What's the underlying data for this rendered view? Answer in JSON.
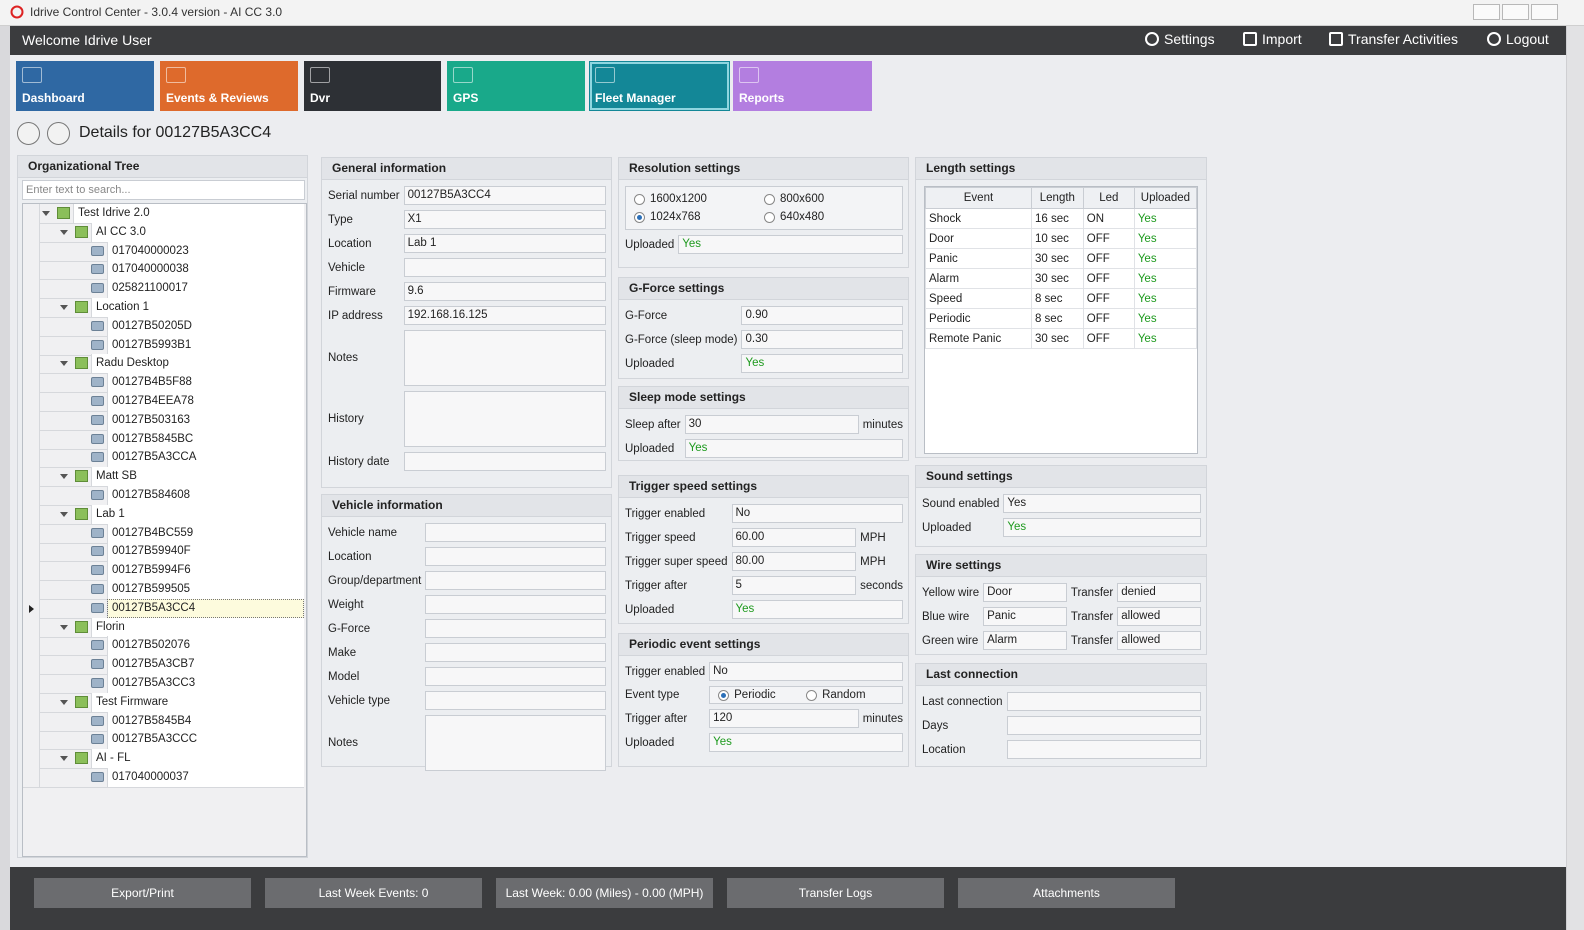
{
  "window": {
    "title": "Idrive Control Center - 3.0.4 version - AI CC 3.0"
  },
  "header": {
    "welcome": "Welcome Idrive User",
    "menu": [
      "Settings",
      "Import",
      "Transfer Activities",
      "Logout"
    ]
  },
  "tabs": [
    {
      "label": "Dashboard",
      "color": "#2f68a3"
    },
    {
      "label": "Events & Reviews",
      "color": "#de6a2c"
    },
    {
      "label": "Dvr",
      "color": "#2d3035"
    },
    {
      "label": "GPS",
      "color": "#19a98a"
    },
    {
      "label": "Fleet Manager",
      "color": "#138797"
    },
    {
      "label": "Reports",
      "color": "#b37ee0"
    }
  ],
  "details": {
    "title": "Details for 00127B5A3CC4"
  },
  "tree": {
    "title": "Organizational Tree",
    "search_placeholder": "Enter text to search...",
    "nodes": [
      {
        "label": "Test Idrive 2.0",
        "children": [
          {
            "label": "AI CC 3.0",
            "children": [
              {
                "label": "017040000023"
              },
              {
                "label": "017040000038"
              },
              {
                "label": "025821100017"
              }
            ]
          },
          {
            "label": "Location 1",
            "children": [
              {
                "label": "00127B50205D"
              },
              {
                "label": "00127B5993B1"
              }
            ]
          },
          {
            "label": "Radu Desktop",
            "children": [
              {
                "label": "00127B4B5F88"
              },
              {
                "label": "00127B4EEA78"
              },
              {
                "label": "00127B503163"
              },
              {
                "label": "00127B5845BC"
              },
              {
                "label": "00127B5A3CCA"
              }
            ]
          },
          {
            "label": "Matt SB",
            "children": [
              {
                "label": "00127B584608"
              }
            ]
          },
          {
            "label": "Lab 1",
            "children": [
              {
                "label": "00127B4BC559"
              },
              {
                "label": "00127B59940F"
              },
              {
                "label": "00127B5994F6"
              },
              {
                "label": "00127B599505"
              },
              {
                "label": "00127B5A3CC4"
              }
            ]
          },
          {
            "label": "Florin",
            "children": [
              {
                "label": "00127B502076"
              },
              {
                "label": "00127B5A3CB7"
              },
              {
                "label": "00127B5A3CC3"
              }
            ]
          },
          {
            "label": "Test Firmware",
            "children": [
              {
                "label": "00127B5845B4"
              },
              {
                "label": "00127B5A3CCC"
              }
            ]
          },
          {
            "label": "AI - FL",
            "children": [
              {
                "label": "017040000037"
              }
            ]
          }
        ]
      }
    ]
  },
  "columns": [
    [
      {
        "title": "General information",
        "rows": [
          {
            "label": "Serial number",
            "value": "00127B5A3CC4"
          },
          {
            "label": "Type",
            "value": "X1"
          },
          {
            "label": "Location",
            "value": "Lab 1"
          },
          {
            "label": "Vehicle"
          },
          {
            "label": "Firmware",
            "value": "9.6"
          },
          {
            "label": "IP address",
            "value": "192.168.16.125"
          },
          {
            "label": "Notes",
            "multiline": true
          },
          {
            "label": "History",
            "multiline": true
          },
          {
            "label": "History date"
          }
        ]
      },
      {
        "title": "Vehicle information",
        "rows": [
          {
            "label": "Vehicle name"
          },
          {
            "label": "Location"
          },
          {
            "label": "Group/department"
          },
          {
            "label": "Weight"
          },
          {
            "label": "G-Force"
          },
          {
            "label": "Make"
          },
          {
            "label": "Model"
          },
          {
            "label": "Vehicle type"
          },
          {
            "label": "Notes",
            "multiline": true
          }
        ]
      }
    ],
    [
      {
        "title": "Resolution settings",
        "rows": [
          {
            "options": [
              "1600x1200",
              "800x600",
              "1024x768",
              "640x480"
            ],
            "selected": 2
          },
          {
            "label": "Uploaded",
            "value": "Yes",
            "value_color": "#1e9a1e"
          }
        ]
      },
      {
        "title": "G-Force settings",
        "rows": [
          {
            "label": "G-Force",
            "value": "0.90"
          },
          {
            "label": "G-Force (sleep mode)",
            "value": "0.30"
          },
          {
            "label": "Uploaded",
            "value": "Yes",
            "value_color": "#1e9a1e"
          }
        ]
      },
      {
        "title": "Sleep mode settings",
        "rows": [
          {
            "label": "Sleep after",
            "value": "30",
            "unit": "minutes"
          },
          {
            "label": "Uploaded",
            "value": "Yes",
            "value_color": "#1e9a1e"
          }
        ]
      },
      {
        "title": "Trigger speed settings",
        "rows": [
          {
            "label": "Trigger enabled",
            "value": "No"
          },
          {
            "label": "Trigger speed",
            "value": "60.00",
            "unit": "MPH"
          },
          {
            "label": "Trigger super speed",
            "value": "80.00",
            "unit": "MPH"
          },
          {
            "label": "Trigger after",
            "value": "5",
            "unit": "seconds"
          },
          {
            "label": "Uploaded",
            "value": "Yes",
            "value_color": "#1e9a1e"
          }
        ]
      },
      {
        "title": "Periodic event settings",
        "rows": [
          {
            "label": "Trigger enabled",
            "value": "No"
          },
          {
            "label": "Event type",
            "options": [
              "Periodic",
              "Random"
            ],
            "selected": 0
          },
          {
            "label": "Trigger after",
            "value": "120",
            "unit": "minutes"
          },
          {
            "label": "Uploaded",
            "value": "Yes",
            "value_color": "#1e9a1e"
          }
        ]
      }
    ],
    [
      {
        "title": "Length settings",
        "table": {
          "headers": [
            "Event",
            "Length",
            "Led",
            "Uploaded"
          ],
          "rows": [
            [
              "Shock",
              "16 sec",
              "ON",
              "Yes"
            ],
            [
              "Door",
              "10 sec",
              "OFF",
              "Yes"
            ],
            [
              "Panic",
              "30 sec",
              "OFF",
              "Yes"
            ],
            [
              "Alarm",
              "30 sec",
              "OFF",
              "Yes"
            ],
            [
              "Speed",
              "8 sec",
              "OFF",
              "Yes"
            ],
            [
              "Periodic",
              "8 sec",
              "OFF",
              "Yes"
            ],
            [
              "Remote Panic",
              "30 sec",
              "OFF",
              "Yes"
            ]
          ],
          "color_column": 3,
          "color": "#1e9a1e"
        }
      },
      {
        "title": "Sound settings",
        "rows": [
          {
            "label": "Sound enabled",
            "value": "Yes"
          },
          {
            "label": "Uploaded",
            "value": "Yes",
            "value_color": "#1e9a1e"
          }
        ]
      },
      {
        "title": "Wire settings",
        "rows": [
          {
            "label": "Yellow wire",
            "value": "Door",
            "transfer_label": "Transfer",
            "transfer": "denied"
          },
          {
            "label": "Blue wire",
            "value": "Panic",
            "transfer_label": "Transfer",
            "transfer": "allowed"
          },
          {
            "label": "Green wire",
            "value": "Alarm",
            "transfer_label": "Transfer",
            "transfer": "allowed"
          }
        ]
      },
      {
        "title": "Last connection",
        "rows": [
          {
            "label": "Last connection"
          },
          {
            "label": "Days"
          },
          {
            "label": "Location"
          }
        ]
      }
    ]
  ],
  "footer": {
    "buttons": [
      "Export/Print",
      "Last Week Events: 0",
      "Last Week: 0.00 (Miles) - 0.00 (MPH)",
      "Transfer Logs",
      "Attachments"
    ]
  }
}
